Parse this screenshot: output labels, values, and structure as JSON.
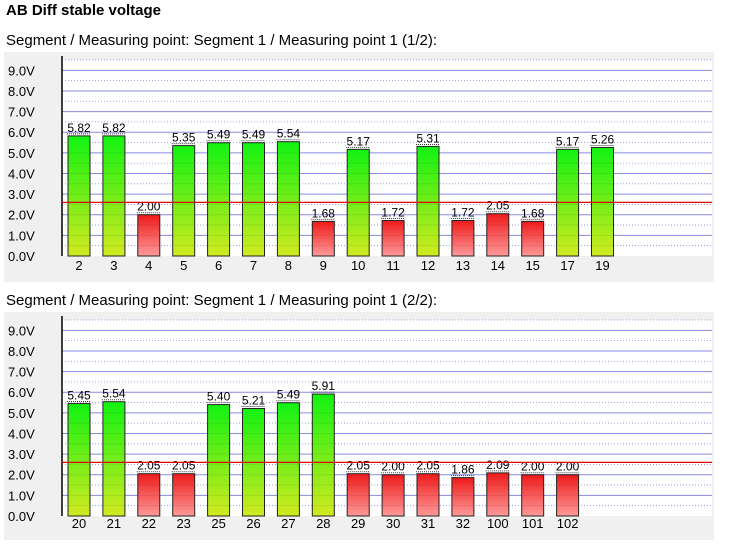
{
  "page": {
    "title": "AB Diff stable voltage"
  },
  "colors": {
    "panel_bg": "#f0f0f0",
    "plot_bg": "#ffffff",
    "gridline": "#8a8ae0",
    "threshold_line": "#e00000",
    "bar_green_top": "#12f212",
    "bar_green_bottom": "#d2ea20",
    "bar_red_top": "#ee1a1a",
    "bar_red_bottom": "#ff9a9a"
  },
  "chart_data": [
    {
      "type": "bar",
      "title": "Segment / Measuring point: Segment 1 / Measuring point 1 (1/2):",
      "y_ticks": [
        "9.0V",
        "8.0V",
        "7.0V",
        "6.0V",
        "5.0V",
        "4.0V",
        "3.0V",
        "2.0V",
        "1.0V",
        "0.0V"
      ],
      "ylim": [
        0,
        9.5
      ],
      "threshold": 2.6,
      "categories": [
        "2",
        "3",
        "4",
        "5",
        "6",
        "7",
        "8",
        "9",
        "10",
        "11",
        "12",
        "13",
        "14",
        "15",
        "17",
        "19"
      ],
      "values": [
        5.82,
        5.82,
        2.0,
        5.35,
        5.49,
        5.49,
        5.54,
        1.68,
        5.17,
        1.72,
        5.31,
        1.72,
        2.05,
        1.68,
        5.17,
        5.26
      ],
      "value_labels": [
        "5.82",
        "5.82",
        "2.00",
        "5.35",
        "5.49",
        "5.49",
        "5.54",
        "1.68",
        "5.17",
        "1.72",
        "5.31",
        "1.72",
        "2.05",
        "1.68",
        "5.17",
        "5.26"
      ]
    },
    {
      "type": "bar",
      "title": "Segment / Measuring point: Segment 1 / Measuring point 1 (2/2):",
      "y_ticks": [
        "9.0V",
        "8.0V",
        "7.0V",
        "6.0V",
        "5.0V",
        "4.0V",
        "3.0V",
        "2.0V",
        "1.0V",
        "0.0V"
      ],
      "ylim": [
        0,
        9.5
      ],
      "threshold": 2.6,
      "categories": [
        "20",
        "21",
        "22",
        "23",
        "25",
        "26",
        "27",
        "28",
        "29",
        "30",
        "31",
        "32",
        "100",
        "101",
        "102"
      ],
      "values": [
        5.45,
        5.54,
        2.05,
        2.05,
        5.4,
        5.21,
        5.49,
        5.91,
        2.05,
        2.0,
        2.05,
        1.86,
        2.09,
        2.0,
        2.0
      ],
      "value_labels": [
        "5.45",
        "5.54",
        "2.05",
        "2.05",
        "5.40",
        "5.21",
        "5.49",
        "5.91",
        "2.05",
        "2.00",
        "2.05",
        "1.86",
        "2.09",
        "2.00",
        "2.00"
      ]
    }
  ]
}
